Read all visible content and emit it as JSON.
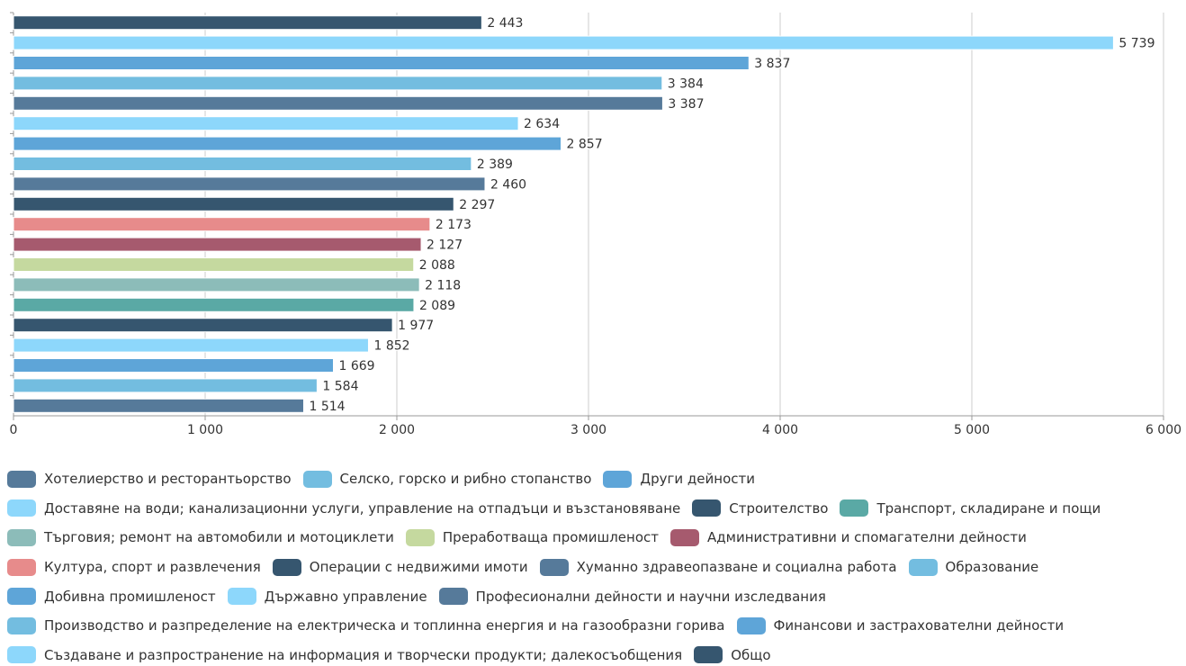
{
  "chart_data": {
    "type": "bar",
    "orientation": "horizontal",
    "xlim": [
      0,
      6000
    ],
    "xticks": [
      0,
      {
        "value": 1000,
        "label": "1 000"
      },
      {
        "value": 2000,
        "label": "2 000"
      },
      {
        "value": 3000,
        "label": "3 000"
      },
      {
        "value": 4000,
        "label": "4 000"
      },
      {
        "value": 5000,
        "label": "5 000"
      },
      {
        "value": 6000,
        "label": "6 000"
      }
    ],
    "grid": true,
    "legend": "bottom",
    "series": [
      {
        "name": "Хотелиерство и ресторантьорство",
        "color": "#567a9a",
        "values": [
          1514
        ],
        "value_labels": [
          "1 514"
        ]
      },
      {
        "name": "Селско, горско и рибно стопанство",
        "color": "#73bde0",
        "values": [
          1584
        ],
        "value_labels": [
          "1 584"
        ]
      },
      {
        "name": "Други дейности",
        "color": "#5ea5d8",
        "values": [
          1669
        ],
        "value_labels": [
          "1 669"
        ]
      },
      {
        "name": "Доставяне на води; канализационни услуги, управление на отпадъци и възстановяване",
        "color": "#8dd7fb",
        "values": [
          1852
        ],
        "value_labels": [
          "1 852"
        ]
      },
      {
        "name": "Строителство",
        "color": "#36566f",
        "values": [
          1977
        ],
        "value_labels": [
          "1 977"
        ]
      },
      {
        "name": "Транспорт, складиране и пощи",
        "color": "#5aa9a5",
        "values": [
          2089
        ],
        "value_labels": [
          "2 089"
        ]
      },
      {
        "name": "Търговия; ремонт на автомобили и мотоциклети",
        "color": "#8cbcb9",
        "values": [
          2118
        ],
        "value_labels": [
          "2 118"
        ]
      },
      {
        "name": "Преработваща промишленост",
        "color": "#c5d99f",
        "values": [
          2088
        ],
        "value_labels": [
          "2 088"
        ]
      },
      {
        "name": "Административни и спомагателни дейности",
        "color": "#a65a6e",
        "values": [
          2127
        ],
        "value_labels": [
          "2 127"
        ]
      },
      {
        "name": "Култура, спорт и развлечения",
        "color": "#e78b8b",
        "values": [
          2173
        ],
        "value_labels": [
          "2 173"
        ]
      },
      {
        "name": "Операции с недвижими имоти",
        "color": "#36566f",
        "values": [
          2297
        ],
        "value_labels": [
          "2 297"
        ]
      },
      {
        "name": "Хуманно здравеопазване и социална работа",
        "color": "#567a9a",
        "values": [
          2460
        ],
        "value_labels": [
          "2 460"
        ]
      },
      {
        "name": "Образование",
        "color": "#73bde0",
        "values": [
          2389
        ],
        "value_labels": [
          "2 389"
        ]
      },
      {
        "name": "Добивна промишленост",
        "color": "#5ea5d8",
        "values": [
          2857
        ],
        "value_labels": [
          "2 857"
        ]
      },
      {
        "name": "Държавно управление",
        "color": "#8dd7fb",
        "values": [
          2634
        ],
        "value_labels": [
          "2 634"
        ]
      },
      {
        "name": "Професионални дейности и научни изследвания",
        "color": "#567a9a",
        "values": [
          3387
        ],
        "value_labels": [
          "3 387"
        ]
      },
      {
        "name": "Производство и разпределение на електрическа и топлинна енергия и на газообразни горива",
        "color": "#73bde0",
        "values": [
          3384
        ],
        "value_labels": [
          "3 384"
        ]
      },
      {
        "name": "Финансови и застрахователни дейности",
        "color": "#5ea5d8",
        "values": [
          3837
        ],
        "value_labels": [
          "3 837"
        ]
      },
      {
        "name": "Създаване и разпространение на информация и творчески продукти; далекосъобщения",
        "color": "#8dd7fb",
        "values": [
          5739
        ],
        "value_labels": [
          "5 739"
        ]
      },
      {
        "name": "Общо",
        "color": "#36566f",
        "values": [
          2443
        ],
        "value_labels": [
          "2 443"
        ]
      }
    ]
  }
}
